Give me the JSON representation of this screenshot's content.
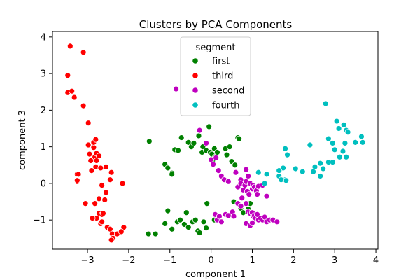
{
  "chart_data": {
    "type": "scatter",
    "title": "Clusters by PCA Components",
    "xlabel": "component 1",
    "ylabel": "component 3",
    "xlim": [
      -3.85,
      4.05
    ],
    "ylim": [
      -1.8,
      4.15
    ],
    "xticks": [
      -3,
      -2,
      -1,
      0,
      1,
      2,
      3,
      4
    ],
    "xtick_labels": [
      "−3",
      "−2",
      "−1",
      "0",
      "1",
      "2",
      "3",
      "4"
    ],
    "yticks": [
      -1,
      0,
      1,
      2,
      3,
      4
    ],
    "ytick_labels": [
      "−1",
      "0",
      "1",
      "2",
      "3",
      "4"
    ],
    "grid": false,
    "legend": {
      "title": "segment",
      "placement": "upper-center"
    },
    "series": [
      {
        "name": "first",
        "color": "#008000",
        "points": [
          [
            -1.5,
            1.15
          ],
          [
            -1.12,
            0.52
          ],
          [
            -1.05,
            0.42
          ],
          [
            -0.95,
            0.28
          ],
          [
            -0.95,
            0.25
          ],
          [
            -0.88,
            0.92
          ],
          [
            -0.8,
            0.9
          ],
          [
            -0.72,
            1.25
          ],
          [
            -0.55,
            1.12
          ],
          [
            -0.48,
            1.0
          ],
          [
            -0.42,
            1.1
          ],
          [
            -0.3,
            1.3
          ],
          [
            -0.22,
            0.85
          ],
          [
            -0.2,
            1.0
          ],
          [
            -0.12,
            0.9
          ],
          [
            -0.05,
            1.55
          ],
          [
            -0.02,
            0.85
          ],
          [
            0.02,
            0.8
          ],
          [
            0.05,
            0.65
          ],
          [
            0.08,
            0.95
          ],
          [
            0.1,
            0.72
          ],
          [
            0.15,
            0.85
          ],
          [
            0.35,
            0.95
          ],
          [
            0.45,
            1.0
          ],
          [
            0.38,
            0.78
          ],
          [
            0.65,
            1.25
          ],
          [
            0.68,
            1.22
          ],
          [
            0.5,
            0.6
          ],
          [
            0.58,
            0.5
          ],
          [
            -1.52,
            -1.38
          ],
          [
            -1.35,
            -1.38
          ],
          [
            -1.12,
            -1.1
          ],
          [
            -1.05,
            -0.75
          ],
          [
            -0.95,
            -1.25
          ],
          [
            -0.82,
            -1.05
          ],
          [
            -0.75,
            -1.0
          ],
          [
            -0.65,
            -1.12
          ],
          [
            -0.6,
            -0.8
          ],
          [
            -0.55,
            -1.2
          ],
          [
            -0.45,
            -1.05
          ],
          [
            -0.38,
            -1.0
          ],
          [
            -0.32,
            -1.3
          ],
          [
            -0.28,
            -1.35
          ],
          [
            -0.18,
            -1.05
          ],
          [
            -0.12,
            -1.22
          ],
          [
            -0.1,
            -0.55
          ],
          [
            0.08,
            -1.0
          ],
          [
            0.18,
            -0.95
          ],
          [
            0.55,
            -0.5
          ],
          [
            0.72,
            -0.68
          ],
          [
            0.78,
            -0.8
          ],
          [
            0.9,
            -0.7
          ],
          [
            0.95,
            -0.55
          ]
        ]
      },
      {
        "name": "third",
        "color": "#ff0000",
        "points": [
          [
            -3.42,
            3.75
          ],
          [
            -3.1,
            3.58
          ],
          [
            -3.48,
            2.95
          ],
          [
            -3.48,
            2.48
          ],
          [
            -3.38,
            2.52
          ],
          [
            -3.32,
            2.35
          ],
          [
            -3.1,
            2.12
          ],
          [
            -2.98,
            1.65
          ],
          [
            -2.98,
            1.05
          ],
          [
            -2.85,
            0.98
          ],
          [
            -2.85,
            1.12
          ],
          [
            -2.8,
            1.2
          ],
          [
            -2.95,
            0.8
          ],
          [
            -2.82,
            0.72
          ],
          [
            -2.78,
            0.82
          ],
          [
            -2.72,
            0.75
          ],
          [
            -2.92,
            0.62
          ],
          [
            -2.78,
            0.62
          ],
          [
            -2.9,
            0.35
          ],
          [
            -2.8,
            0.45
          ],
          [
            -2.68,
            0.42
          ],
          [
            -2.55,
            0.45
          ],
          [
            -2.42,
            0.3
          ],
          [
            -2.45,
            0.1
          ],
          [
            -2.15,
            0.0
          ],
          [
            -3.25,
            0.25
          ],
          [
            -3.22,
            0.25
          ],
          [
            -3.25,
            0.05
          ],
          [
            -3.25,
            0.08
          ],
          [
            -2.65,
            -0.05
          ],
          [
            -2.55,
            -0.25
          ],
          [
            -2.58,
            -0.45
          ],
          [
            -2.72,
            -0.42
          ],
          [
            -3.05,
            -0.55
          ],
          [
            -2.82,
            -0.55
          ],
          [
            -2.72,
            -0.82
          ],
          [
            -2.65,
            -0.85
          ],
          [
            -2.62,
            -0.82
          ],
          [
            -2.78,
            -0.95
          ],
          [
            -2.88,
            -0.95
          ],
          [
            -2.68,
            -1.1
          ],
          [
            -2.52,
            -1.2
          ],
          [
            -2.45,
            -1.25
          ],
          [
            -2.4,
            -1.38
          ],
          [
            -2.38,
            -1.5
          ],
          [
            -2.42,
            -1.55
          ],
          [
            -2.28,
            -1.38
          ],
          [
            -2.12,
            -1.2
          ],
          [
            -2.18,
            -1.32
          ],
          [
            -2.65,
            -1.05
          ]
        ]
      },
      {
        "name": "second",
        "color": "#bf00bf",
        "points": [
          [
            -0.85,
            2.58
          ],
          [
            -0.28,
            1.45
          ],
          [
            -0.12,
            1.1
          ],
          [
            0.0,
            0.65
          ],
          [
            0.05,
            0.52
          ],
          [
            0.12,
            0.7
          ],
          [
            0.18,
            0.35
          ],
          [
            0.25,
            0.2
          ],
          [
            0.32,
            0.1
          ],
          [
            0.42,
            0.05
          ],
          [
            0.6,
            0.3
          ],
          [
            0.72,
            0.1
          ],
          [
            0.85,
            0.38
          ],
          [
            0.9,
            0.2
          ],
          [
            0.65,
            -0.1
          ],
          [
            0.72,
            0.0
          ],
          [
            0.78,
            -0.18
          ],
          [
            0.82,
            -0.05
          ],
          [
            0.85,
            0.05
          ],
          [
            0.88,
            -0.22
          ],
          [
            0.92,
            -0.3
          ],
          [
            0.95,
            0.0
          ],
          [
            1.0,
            -0.15
          ],
          [
            1.02,
            -0.05
          ],
          [
            1.05,
            -0.1
          ],
          [
            1.1,
            -0.2
          ],
          [
            1.12,
            -0.3
          ],
          [
            1.15,
            -0.08
          ],
          [
            1.25,
            -0.05
          ],
          [
            1.35,
            -0.35
          ],
          [
            0.65,
            -0.55
          ],
          [
            0.72,
            -0.62
          ],
          [
            0.75,
            -0.4
          ],
          [
            0.85,
            -0.55
          ],
          [
            0.9,
            -0.78
          ],
          [
            0.95,
            -0.82
          ],
          [
            1.0,
            -0.8
          ],
          [
            1.02,
            -0.9
          ],
          [
            1.05,
            -0.88
          ],
          [
            1.08,
            -0.95
          ],
          [
            1.12,
            -0.85
          ],
          [
            1.15,
            -1.0
          ],
          [
            1.2,
            -0.95
          ],
          [
            1.25,
            -1.0
          ],
          [
            1.3,
            -0.92
          ],
          [
            1.35,
            -1.05
          ],
          [
            1.42,
            -1.0
          ],
          [
            1.5,
            -1.0
          ],
          [
            1.6,
            -1.05
          ],
          [
            0.1,
            -0.85
          ],
          [
            0.15,
            -1.0
          ],
          [
            0.2,
            -0.9
          ],
          [
            0.25,
            -1.05
          ],
          [
            0.35,
            -0.85
          ],
          [
            0.42,
            -0.88
          ],
          [
            0.52,
            -0.78
          ],
          [
            0.55,
            -0.9
          ],
          [
            0.85,
            -1.1
          ],
          [
            0.95,
            -1.15
          ],
          [
            1.0,
            -1.08
          ]
        ]
      },
      {
        "name": "fourth",
        "color": "#00bfbf",
        "points": [
          [
            2.78,
            2.18
          ],
          [
            3.05,
            1.7
          ],
          [
            3.1,
            1.5
          ],
          [
            3.22,
            1.6
          ],
          [
            3.28,
            1.45
          ],
          [
            3.32,
            1.4
          ],
          [
            2.85,
            1.22
          ],
          [
            2.95,
            1.1
          ],
          [
            3.25,
            1.1
          ],
          [
            3.5,
            1.12
          ],
          [
            3.65,
            1.28
          ],
          [
            3.68,
            1.12
          ],
          [
            2.4,
            1.05
          ],
          [
            3.0,
            0.92
          ],
          [
            3.2,
            0.88
          ],
          [
            3.12,
            0.72
          ],
          [
            3.28,
            0.72
          ],
          [
            2.85,
            0.58
          ],
          [
            2.95,
            0.58
          ],
          [
            2.65,
            0.55
          ],
          [
            2.52,
            0.45
          ],
          [
            2.72,
            0.4
          ],
          [
            2.48,
            0.32
          ],
          [
            2.65,
            0.2
          ],
          [
            2.22,
            0.32
          ],
          [
            2.05,
            0.4
          ],
          [
            1.8,
            0.95
          ],
          [
            1.85,
            0.78
          ],
          [
            1.75,
            0.42
          ],
          [
            1.65,
            0.35
          ],
          [
            1.65,
            0.2
          ],
          [
            1.8,
            0.1
          ],
          [
            1.82,
            0.08
          ],
          [
            1.7,
            0.1
          ],
          [
            1.35,
            0.25
          ],
          [
            1.15,
            0.3
          ],
          [
            1.3,
            0.0
          ]
        ]
      }
    ]
  }
}
